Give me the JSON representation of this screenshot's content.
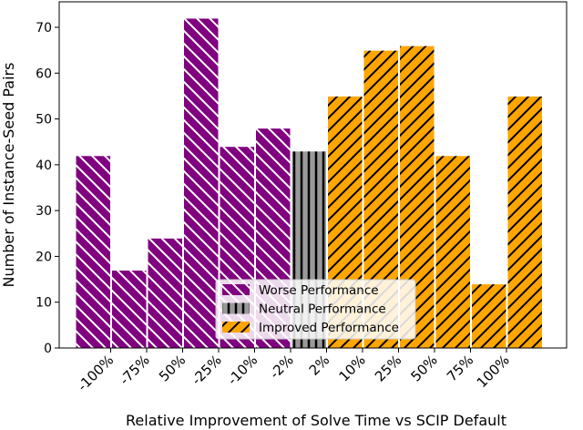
{
  "chart_data": {
    "type": "bar",
    "title": "",
    "xlabel": "Relative Improvement of Solve Time vs SCIP Default",
    "ylabel": "Number of Instance-Seed Pairs",
    "ylim": [
      0,
      75
    ],
    "yticks": [
      0,
      10,
      20,
      30,
      40,
      50,
      60,
      70
    ],
    "boundary_tick_labels": [
      "-100%",
      "-75%",
      "50%",
      "-25%",
      "-10%",
      "-2%",
      "2%",
      "10%",
      "25%",
      "50%",
      "75%",
      "100%"
    ],
    "values": [
      42,
      17,
      24,
      72,
      44,
      48,
      43,
      55,
      65,
      66,
      42,
      14,
      55
    ],
    "groups": [
      "worse",
      "worse",
      "worse",
      "worse",
      "worse",
      "worse",
      "neutral",
      "improved",
      "improved",
      "improved",
      "improved",
      "improved",
      "improved"
    ],
    "grid": false,
    "legend_placement": "bottom-center",
    "series": [
      {
        "key": "worse",
        "name": "Worse Performance",
        "color": "#800080",
        "hatch": "\\\\",
        "hatch_color": "#ffffff"
      },
      {
        "key": "neutral",
        "name": "Neutral Performance",
        "color": "#999999",
        "hatch": "|",
        "hatch_color": "#000000"
      },
      {
        "key": "improved",
        "name": "Improved Performance",
        "color": "#ffa500",
        "hatch": "//",
        "hatch_color": "#000000"
      }
    ]
  }
}
